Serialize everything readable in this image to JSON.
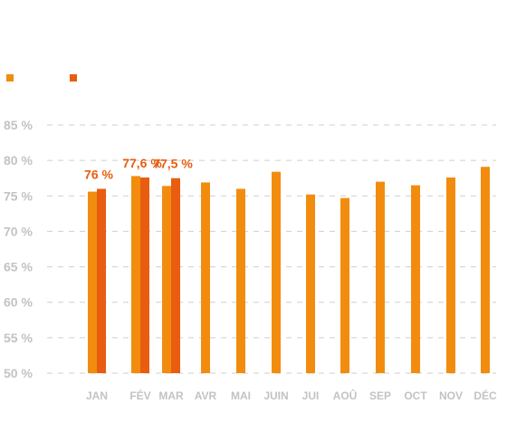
{
  "chart_data": {
    "type": "bar",
    "categories": [
      "JAN",
      "FÉV",
      "MAR",
      "AVR",
      "MAI",
      "JUIN",
      "JUI",
      "AOÛ",
      "SEP",
      "OCT",
      "NOV",
      "DÉC"
    ],
    "series": [
      {
        "color": "#f28c0f",
        "values": [
          75.6,
          77.8,
          76.4,
          76.9,
          76.0,
          78.4,
          75.2,
          74.7,
          77.0,
          76.5,
          77.6,
          79.1
        ]
      },
      {
        "color": "#e85d10",
        "values": [
          76.0,
          77.6,
          77.5,
          null,
          null,
          null,
          null,
          null,
          null,
          null,
          null,
          null
        ]
      }
    ],
    "data_labels": [
      {
        "category": "JAN",
        "text": "76 %"
      },
      {
        "category": "FÉV",
        "text": "77,6 %"
      },
      {
        "category": "MAR",
        "text": "77,5 %"
      }
    ],
    "y_ticks": [
      50,
      55,
      60,
      65,
      70,
      75,
      80,
      85
    ],
    "y_tick_labels": [
      "50 %",
      "55 %",
      "60 %",
      "65 %",
      "70 %",
      "75 %",
      "80 %",
      "85 %"
    ],
    "ylim": [
      50,
      85
    ],
    "grid": true,
    "legend": "top-left"
  }
}
